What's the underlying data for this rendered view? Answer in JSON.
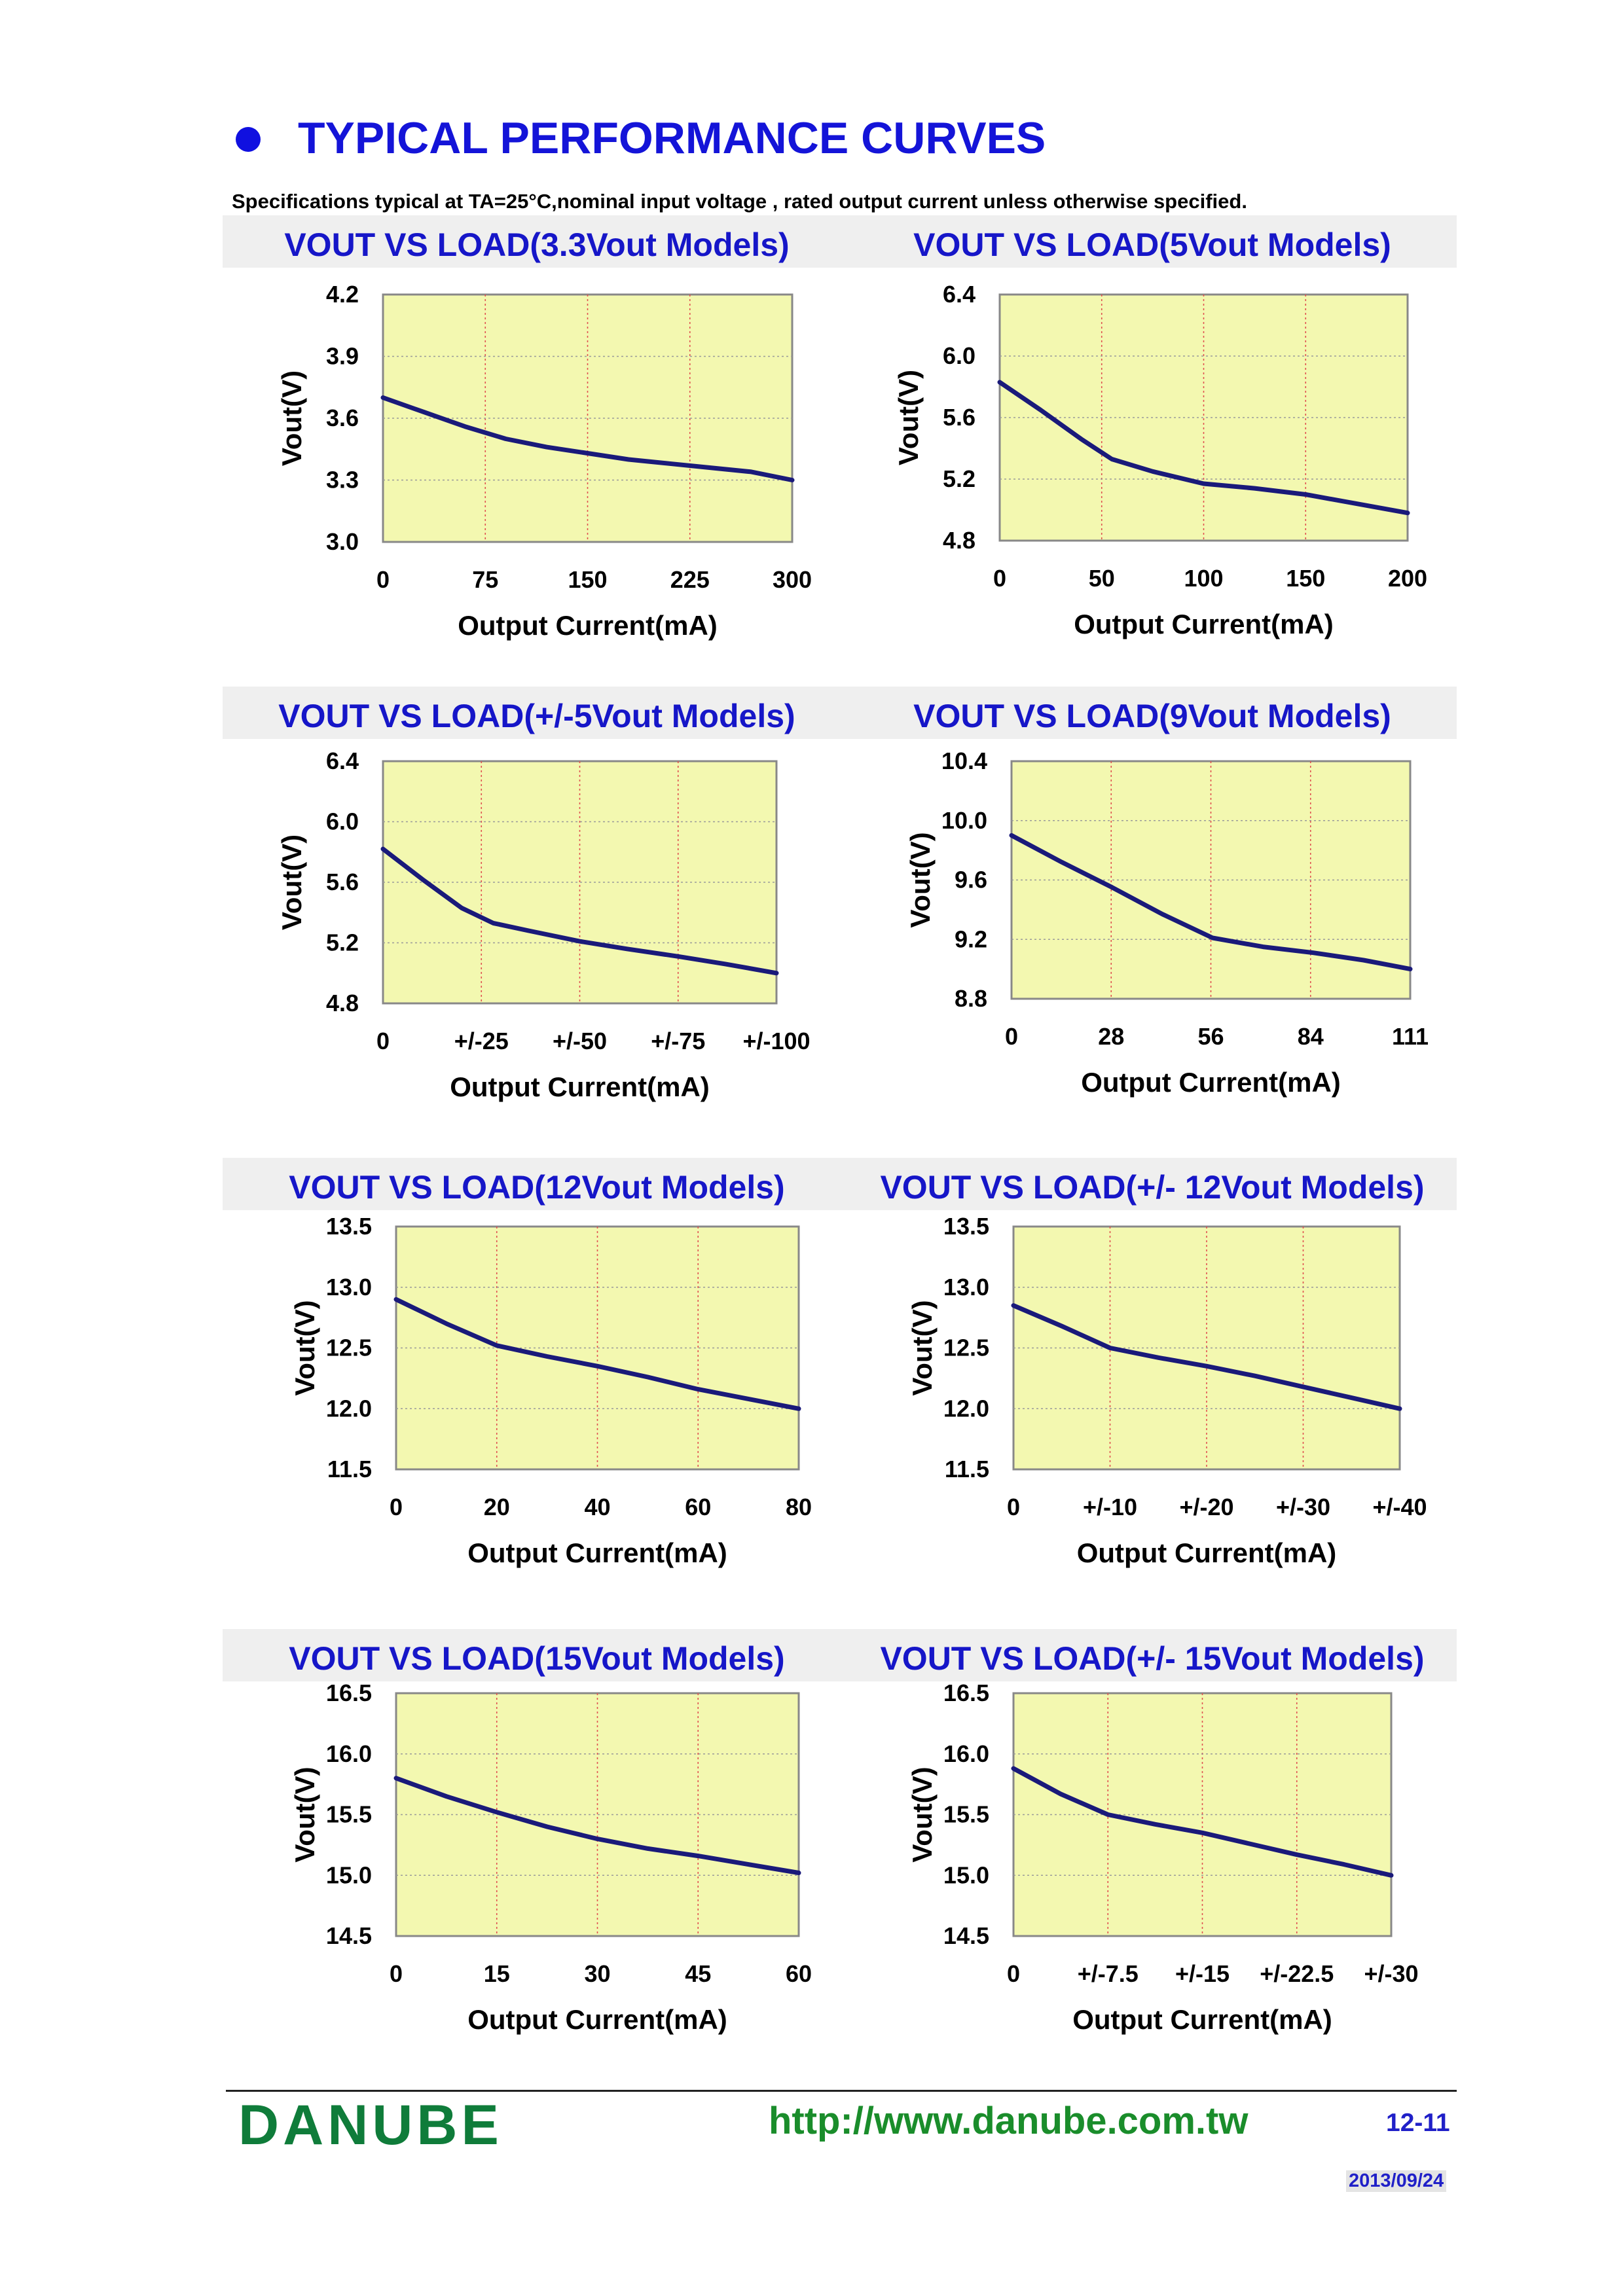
{
  "header": {
    "title": "TYPICAL PERFORMANCE CURVES",
    "subtitle": "Specifications typical at TA=25°C,nominal input voltage , rated output current unless otherwise specified."
  },
  "colors": {
    "title_blue": "#1414d8",
    "plot_background": "#f3f8b0",
    "curve": "#1a1a7a",
    "vertical_grid": "#e05050",
    "horizontal_grid": "#9a9a9a",
    "brand_green": "#0f7c3a"
  },
  "chart_data": [
    {
      "type": "line",
      "title": "VOUT VS LOAD(3.3Vout Models)",
      "xlabel": "Output Current(mA)",
      "ylabel": "Vout(V)",
      "xticks": [
        "0",
        "75",
        "150",
        "225",
        "300"
      ],
      "yticks": [
        "4.2",
        "3.9",
        "3.6",
        "3.3",
        "3.0"
      ],
      "xlim": [
        0,
        300
      ],
      "ylim": [
        3.0,
        4.2
      ],
      "grid": true,
      "series": [
        {
          "name": "Vout",
          "x": [
            0,
            30,
            60,
            90,
            120,
            150,
            180,
            210,
            240,
            270,
            300
          ],
          "values": [
            3.7,
            3.63,
            3.56,
            3.5,
            3.46,
            3.43,
            3.4,
            3.38,
            3.36,
            3.34,
            3.3
          ]
        }
      ]
    },
    {
      "type": "line",
      "title": "VOUT VS LOAD(5Vout Models)",
      "xlabel": "Output Current(mA)",
      "ylabel": "Vout(V)",
      "xticks": [
        "0",
        "50",
        "100",
        "150",
        "200"
      ],
      "yticks": [
        "6.4",
        "6.0",
        "5.6",
        "5.2",
        "4.8"
      ],
      "xlim": [
        0,
        200
      ],
      "ylim": [
        4.8,
        6.4
      ],
      "grid": true,
      "series": [
        {
          "name": "Vout",
          "x": [
            0,
            20,
            40,
            55,
            75,
            100,
            125,
            150,
            175,
            200
          ],
          "values": [
            5.83,
            5.65,
            5.46,
            5.33,
            5.25,
            5.17,
            5.14,
            5.1,
            5.04,
            4.98
          ]
        }
      ]
    },
    {
      "type": "line",
      "title": "VOUT VS LOAD(+/-5Vout Models)",
      "xlabel": "Output Current(mA)",
      "ylabel": "Vout(V)",
      "xticks": [
        "0",
        "+/-25",
        "+/-50",
        "+/-75",
        "+/-100"
      ],
      "yticks": [
        "6.4",
        "6.0",
        "5.6",
        "5.2",
        "4.8"
      ],
      "xlim": [
        0,
        100
      ],
      "ylim": [
        4.8,
        6.4
      ],
      "grid": true,
      "series": [
        {
          "name": "Vout",
          "x": [
            0,
            10,
            20,
            28,
            37,
            50,
            62,
            75,
            87,
            100
          ],
          "values": [
            5.82,
            5.62,
            5.43,
            5.33,
            5.28,
            5.21,
            5.16,
            5.11,
            5.06,
            5.0
          ]
        }
      ]
    },
    {
      "type": "line",
      "title": "VOUT VS LOAD(9Vout Models)",
      "xlabel": "Output Current(mA)",
      "ylabel": "Vout(V)",
      "xticks": [
        "0",
        "28",
        "56",
        "84",
        "111"
      ],
      "yticks": [
        "10.4",
        "10.0",
        "9.6",
        "9.2",
        "8.8"
      ],
      "xlim": [
        0,
        111
      ],
      "ylim": [
        8.8,
        10.4
      ],
      "grid": true,
      "series": [
        {
          "name": "Vout",
          "x": [
            0,
            14,
            28,
            42,
            56,
            70,
            84,
            98,
            111
          ],
          "values": [
            9.9,
            9.72,
            9.55,
            9.37,
            9.21,
            9.15,
            9.11,
            9.06,
            9.0
          ]
        }
      ]
    },
    {
      "type": "line",
      "title": "VOUT VS LOAD(12Vout Models)",
      "xlabel": "Output Current(mA)",
      "ylabel": "Vout(V)",
      "xticks": [
        "0",
        "20",
        "40",
        "60",
        "80"
      ],
      "yticks": [
        "13.5",
        "13.0",
        "12.5",
        "12.0",
        "11.5"
      ],
      "xlim": [
        0,
        80
      ],
      "ylim": [
        11.5,
        13.5
      ],
      "grid": true,
      "series": [
        {
          "name": "Vout",
          "x": [
            0,
            10,
            20,
            30,
            40,
            50,
            60,
            70,
            80
          ],
          "values": [
            12.9,
            12.7,
            12.52,
            12.43,
            12.35,
            12.26,
            12.16,
            12.08,
            12.0
          ]
        }
      ]
    },
    {
      "type": "line",
      "title": "VOUT VS LOAD(+/- 12Vout Models)",
      "xlabel": "Output Current(mA)",
      "ylabel": "Vout(V)",
      "xticks": [
        "0",
        "+/-10",
        "+/-20",
        "+/-30",
        "+/-40"
      ],
      "yticks": [
        "13.5",
        "13.0",
        "12.5",
        "12.0",
        "11.5"
      ],
      "xlim": [
        0,
        40
      ],
      "ylim": [
        11.5,
        13.5
      ],
      "grid": true,
      "series": [
        {
          "name": "Vout",
          "x": [
            0,
            5,
            10,
            15,
            20,
            25,
            30,
            35,
            40
          ],
          "values": [
            12.85,
            12.68,
            12.5,
            12.42,
            12.35,
            12.27,
            12.18,
            12.09,
            12.0
          ]
        }
      ]
    },
    {
      "type": "line",
      "title": "VOUT VS LOAD(15Vout Models)",
      "xlabel": "Output Current(mA)",
      "ylabel": "Vout(V)",
      "xticks": [
        "0",
        "15",
        "30",
        "45",
        "60"
      ],
      "yticks": [
        "16.5",
        "16.0",
        "15.5",
        "15.0",
        "14.5"
      ],
      "xlim": [
        0,
        60
      ],
      "ylim": [
        14.5,
        16.5
      ],
      "grid": true,
      "series": [
        {
          "name": "Vout",
          "x": [
            0,
            7.5,
            15,
            22.5,
            30,
            37.5,
            45,
            52.5,
            60
          ],
          "values": [
            15.8,
            15.65,
            15.52,
            15.4,
            15.3,
            15.22,
            15.16,
            15.09,
            15.02
          ]
        }
      ]
    },
    {
      "type": "line",
      "title": "VOUT VS LOAD(+/- 15Vout Models)",
      "xlabel": "Output Current(mA)",
      "ylabel": "Vout(V)",
      "xticks": [
        "0",
        "+/-7.5",
        "+/-15",
        "+/-22.5",
        "+/-30"
      ],
      "yticks": [
        "16.5",
        "16.0",
        "15.5",
        "15.0",
        "14.5"
      ],
      "xlim": [
        0,
        30
      ],
      "ylim": [
        14.5,
        16.5
      ],
      "grid": true,
      "series": [
        {
          "name": "Vout",
          "x": [
            0,
            3.75,
            7.5,
            11.25,
            15,
            18.75,
            22.5,
            26.25,
            30
          ],
          "values": [
            15.88,
            15.67,
            15.5,
            15.42,
            15.35,
            15.26,
            15.17,
            15.09,
            15.0
          ]
        }
      ]
    }
  ],
  "footer": {
    "brand": "DANUBE",
    "website": "http://www.danube.com.tw",
    "page_number": "12-11",
    "date": "2013/09/24"
  }
}
